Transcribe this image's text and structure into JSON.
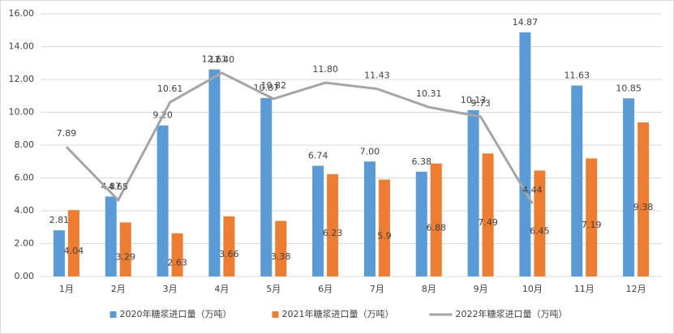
{
  "chart_data": {
    "type": "bar",
    "categories": [
      "1月",
      "2月",
      "3月",
      "4月",
      "5月",
      "6月",
      "7月",
      "8月",
      "9月",
      "10月",
      "11月",
      "12月"
    ],
    "series": [
      {
        "name": "2020年糖浆进口量（万吨）",
        "type": "bar",
        "color": "#5b9bd5",
        "values": [
          2.81,
          4.87,
          9.2,
          12.61,
          10.87,
          6.74,
          7.0,
          6.38,
          10.13,
          14.87,
          11.63,
          10.85
        ],
        "value_labels": [
          "2.81",
          "4.87",
          "9.20",
          "12.61",
          "10.87",
          "6.74",
          "7.00",
          "6.38",
          "10.13",
          "14.87",
          "11.63",
          "10.85"
        ]
      },
      {
        "name": "2021年糖浆进口量（万吨）",
        "type": "bar",
        "color": "#ed7d31",
        "values": [
          4.04,
          3.29,
          2.63,
          3.66,
          3.38,
          6.23,
          5.9,
          6.88,
          7.49,
          6.45,
          7.19,
          9.38
        ],
        "value_labels": [
          "4.04",
          "3.29",
          "2.63",
          "3.66",
          "3.38",
          "6.23",
          "5.9",
          "6.88",
          "7.49",
          "6.45",
          "7.19",
          "9.38"
        ]
      },
      {
        "name": "2022年糖浆进口量（万吨）",
        "type": "line",
        "color": "#a5a5a5",
        "values": [
          7.89,
          4.65,
          10.61,
          12.4,
          10.82,
          11.8,
          11.43,
          10.31,
          9.73,
          4.44,
          null,
          null
        ],
        "value_labels": [
          "7.89",
          "4.65",
          "10.61",
          "12.40",
          "10.82",
          "11.80",
          "11.43",
          "10.31",
          "9.73",
          "4.44",
          null,
          null
        ]
      }
    ],
    "ylim": [
      0,
      16
    ],
    "yticks": [
      {
        "value": 0,
        "label": "0.00"
      },
      {
        "value": 2,
        "label": "2.00"
      },
      {
        "value": 4,
        "label": "4.00"
      },
      {
        "value": 6,
        "label": "6.00"
      },
      {
        "value": 8,
        "label": "8.00"
      },
      {
        "value": 10,
        "label": "10.00"
      },
      {
        "value": 12,
        "label": "12.00"
      },
      {
        "value": 14,
        "label": "14.00"
      },
      {
        "value": 16,
        "label": "16.00"
      }
    ],
    "grid": true,
    "legend": "bottom"
  }
}
